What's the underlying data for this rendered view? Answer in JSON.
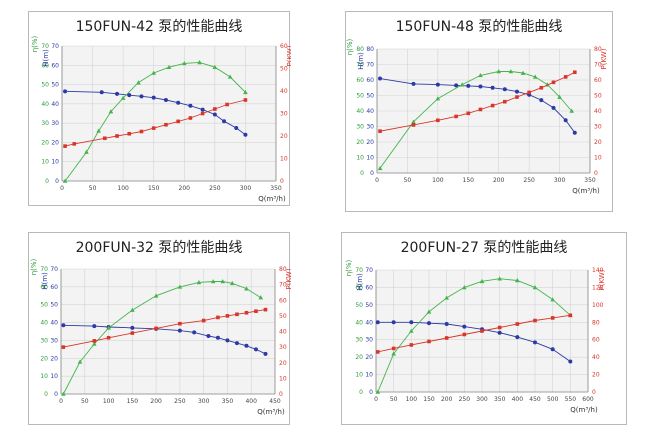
{
  "chart_data": [
    {
      "type": "line",
      "title": "150FUN-42 泵的性能曲线",
      "xlabel": "Q(m³/h)",
      "ylabel_left": "H(m)",
      "ylabel_eta": "η(%)",
      "ylabel_right": "P(KW)",
      "xlim": [
        0,
        350
      ],
      "xticks": [
        0,
        50,
        100,
        150,
        200,
        250,
        300,
        350
      ],
      "ylim_left": [
        0,
        70
      ],
      "yticks_left": [
        0,
        10,
        20,
        30,
        40,
        50,
        60,
        70
      ],
      "eta_ticks": [
        "0",
        "10",
        "20",
        "30",
        "40",
        "50",
        "60",
        "70"
      ],
      "ylim_right": [
        0,
        60
      ],
      "yticks_right": [
        0,
        10,
        20,
        30,
        40,
        50,
        60
      ],
      "series": [
        {
          "key": "H",
          "color": "#2b3aa5",
          "x": [
            5,
            65,
            90,
            110,
            130,
            150,
            170,
            190,
            210,
            230,
            250,
            265,
            285,
            300
          ],
          "y": [
            46.5,
            46,
            45.2,
            44.5,
            43.9,
            43.2,
            42,
            40.6,
            39,
            37,
            34.5,
            31,
            27.5,
            24
          ]
        },
        {
          "key": "eta",
          "color": "#43b54a",
          "x": [
            5,
            40,
            60,
            80,
            100,
            125,
            150,
            175,
            200,
            225,
            250,
            275,
            300
          ],
          "y": [
            0,
            15,
            26,
            36,
            43,
            51,
            56,
            59,
            61,
            61.5,
            59,
            54,
            46
          ]
        },
        {
          "key": "P",
          "color": "#d9362b",
          "x": [
            5,
            20,
            70,
            90,
            110,
            130,
            150,
            170,
            190,
            210,
            230,
            250,
            270,
            300
          ],
          "y": [
            15.5,
            16.5,
            19,
            20,
            21,
            22,
            23.5,
            25,
            26.5,
            28,
            30,
            32,
            34,
            36
          ]
        }
      ]
    },
    {
      "type": "line",
      "title": "150FUN-48 泵的性能曲线",
      "xlabel": "Q(m³/h)",
      "ylabel_left": "H(m)",
      "ylabel_eta": "η(%)",
      "ylabel_right": "P(KW)",
      "xlim": [
        0,
        350
      ],
      "xticks": [
        0,
        50,
        100,
        150,
        200,
        250,
        300,
        350
      ],
      "ylim_left": [
        0,
        80
      ],
      "yticks_left": [
        0,
        10,
        20,
        30,
        40,
        50,
        60,
        70,
        80
      ],
      "eta_ticks": [
        "0",
        "10",
        "20",
        "30",
        "40",
        "50",
        "60",
        "70",
        "80"
      ],
      "ylim_right": [
        0,
        80
      ],
      "yticks_right": [
        0,
        10,
        20,
        30,
        40,
        50,
        60,
        70,
        80
      ],
      "series": [
        {
          "key": "H",
          "color": "#2b3aa5",
          "x": [
            5,
            60,
            100,
            130,
            150,
            170,
            190,
            210,
            230,
            250,
            270,
            290,
            310,
            325
          ],
          "y": [
            61,
            57.5,
            57,
            56.5,
            56.2,
            55.8,
            55,
            54,
            52.5,
            50.5,
            47,
            42,
            34,
            26
          ]
        },
        {
          "key": "eta",
          "color": "#43b54a",
          "x": [
            5,
            60,
            100,
            140,
            170,
            200,
            220,
            240,
            260,
            280,
            300,
            320
          ],
          "y": [
            3,
            33,
            48,
            57,
            63,
            65.5,
            65.5,
            64.5,
            62,
            57,
            49,
            40
          ]
        },
        {
          "key": "P",
          "color": "#d9362b",
          "x": [
            5,
            60,
            100,
            130,
            150,
            170,
            190,
            210,
            230,
            250,
            270,
            290,
            310,
            325
          ],
          "y": [
            27,
            31,
            34,
            36.5,
            38.5,
            41,
            43.5,
            46,
            49,
            52,
            55,
            58.5,
            62,
            65
          ]
        }
      ]
    },
    {
      "type": "line",
      "title": "200FUN-32 泵的性能曲线",
      "xlabel": "Q(m³/h)",
      "ylabel_left": "H(m)",
      "ylabel_eta": "η(%)",
      "ylabel_right": "P(KW)",
      "xlim": [
        0,
        450
      ],
      "xticks": [
        0,
        50,
        100,
        150,
        200,
        250,
        300,
        350,
        400,
        450
      ],
      "ylim_left": [
        0,
        70
      ],
      "yticks_left": [
        0,
        10,
        20,
        30,
        40,
        50,
        60,
        70
      ],
      "eta_ticks": [
        "0",
        "10",
        "20",
        "30",
        "40",
        "50",
        "60",
        "70"
      ],
      "ylim_right": [
        0,
        80
      ],
      "yticks_right": [
        0,
        10,
        20,
        30,
        40,
        50,
        60,
        70,
        80
      ],
      "series": [
        {
          "key": "H",
          "color": "#2b3aa5",
          "x": [
            5,
            70,
            100,
            150,
            200,
            250,
            280,
            310,
            330,
            350,
            370,
            390,
            410,
            430
          ],
          "y": [
            38.5,
            38,
            37.5,
            37,
            36.5,
            35.5,
            34.5,
            32.5,
            31.5,
            30,
            28.5,
            27,
            25,
            22.5
          ]
        },
        {
          "key": "eta",
          "color": "#43b54a",
          "x": [
            5,
            40,
            70,
            100,
            150,
            200,
            250,
            290,
            320,
            340,
            360,
            390,
            420
          ],
          "y": [
            0,
            18,
            28,
            37,
            47,
            55,
            60,
            62.5,
            63,
            63,
            62,
            59,
            54
          ]
        },
        {
          "key": "P",
          "color": "#d9362b",
          "x": [
            5,
            70,
            100,
            150,
            200,
            250,
            300,
            330,
            350,
            370,
            390,
            410,
            430
          ],
          "y": [
            30,
            34,
            36,
            39,
            42,
            45,
            47,
            49,
            50,
            51,
            52,
            53,
            54
          ]
        }
      ]
    },
    {
      "type": "line",
      "title": "200FUN-27 泵的性能曲线",
      "xlabel": "Q(m³/h)",
      "ylabel_left": "H(m)",
      "ylabel_eta": "η(%)",
      "ylabel_right": "P(KW)",
      "xlim": [
        0,
        600
      ],
      "xticks": [
        0,
        50,
        100,
        150,
        200,
        250,
        300,
        350,
        400,
        450,
        500,
        550,
        600
      ],
      "ylim_left": [
        0,
        70
      ],
      "yticks_left": [
        0,
        10,
        20,
        30,
        40,
        50,
        60,
        70
      ],
      "eta_ticks": [
        "0",
        "10",
        "20",
        "30",
        "40",
        "50",
        "60",
        "70"
      ],
      "ylim_right": [
        0,
        140
      ],
      "yticks_right": [
        0,
        20,
        40,
        60,
        80,
        100,
        120,
        140
      ],
      "series": [
        {
          "key": "H",
          "color": "#2b3aa5",
          "x": [
            5,
            50,
            100,
            150,
            200,
            250,
            300,
            350,
            400,
            450,
            500,
            550
          ],
          "y": [
            40,
            40,
            40,
            39.5,
            39,
            37.5,
            36,
            34,
            31.5,
            28.5,
            24.5,
            17.5
          ]
        },
        {
          "key": "eta",
          "color": "#43b54a",
          "x": [
            5,
            50,
            100,
            150,
            200,
            250,
            300,
            350,
            400,
            450,
            500,
            550
          ],
          "y": [
            0,
            22,
            35,
            46,
            54,
            60,
            63.5,
            65,
            64,
            60,
            53,
            44
          ]
        },
        {
          "key": "P",
          "color": "#d9362b",
          "x": [
            5,
            50,
            100,
            150,
            200,
            250,
            300,
            350,
            400,
            450,
            500,
            550
          ],
          "y": [
            46,
            50,
            54,
            58,
            62,
            66,
            70,
            74,
            78,
            82,
            85,
            88
          ]
        }
      ]
    }
  ]
}
